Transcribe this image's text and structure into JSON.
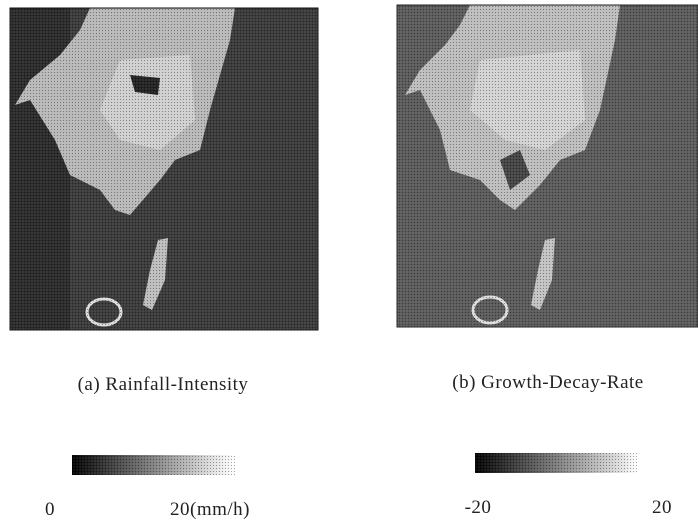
{
  "panels": [
    {
      "caption": "(a) Rainfall-Intensity",
      "colorbar": {
        "min_label": 0,
        "max_label": "20(mm/h)"
      }
    },
    {
      "caption": "(b) Growth-Decay-Rate",
      "colorbar": {
        "min_label": -20,
        "max_label": 20
      }
    }
  ]
}
